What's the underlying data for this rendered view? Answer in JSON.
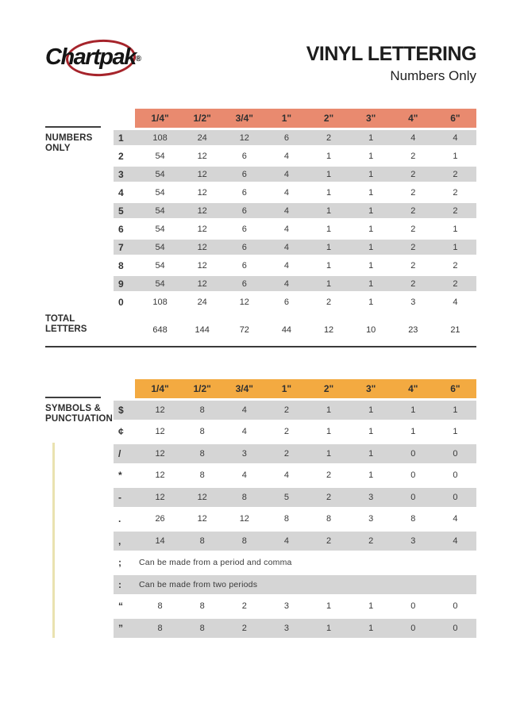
{
  "brand": {
    "logo_text": "Chartpak",
    "registered": "®"
  },
  "header": {
    "title": "VINYL LETTERING",
    "subtitle": "Numbers Only"
  },
  "colors": {
    "numbers_header_bg": "#E98A6F",
    "symbols_header_bg": "#F3AA41",
    "row_stripe": "#D5D5D5",
    "logo_ellipse_red": "#A6242B"
  },
  "sizes": [
    "1/4\"",
    "1/2\"",
    "3/4\"",
    "1\"",
    "2\"",
    "3\"",
    "4\"",
    "6\""
  ],
  "numbers_table": {
    "section_label_line1": "NUMBERS",
    "section_label_line2": "ONLY",
    "rows": [
      {
        "symbol": "1",
        "values": [
          108,
          24,
          12,
          6,
          2,
          1,
          4,
          4
        ]
      },
      {
        "symbol": "2",
        "values": [
          54,
          12,
          6,
          4,
          1,
          1,
          2,
          1
        ]
      },
      {
        "symbol": "3",
        "values": [
          54,
          12,
          6,
          4,
          1,
          1,
          2,
          2
        ]
      },
      {
        "symbol": "4",
        "values": [
          54,
          12,
          6,
          4,
          1,
          1,
          2,
          2
        ]
      },
      {
        "symbol": "5",
        "values": [
          54,
          12,
          6,
          4,
          1,
          1,
          2,
          2
        ]
      },
      {
        "symbol": "6",
        "values": [
          54,
          12,
          6,
          4,
          1,
          1,
          2,
          1
        ]
      },
      {
        "symbol": "7",
        "values": [
          54,
          12,
          6,
          4,
          1,
          1,
          2,
          1
        ]
      },
      {
        "symbol": "8",
        "values": [
          54,
          12,
          6,
          4,
          1,
          1,
          2,
          2
        ]
      },
      {
        "symbol": "9",
        "values": [
          54,
          12,
          6,
          4,
          1,
          1,
          2,
          2
        ]
      },
      {
        "symbol": "0",
        "values": [
          108,
          24,
          12,
          6,
          2,
          1,
          3,
          4
        ]
      }
    ],
    "total_label_line1": "TOTAL",
    "total_label_line2": "LETTERS",
    "totals": [
      648,
      144,
      72,
      44,
      12,
      10,
      23,
      21
    ]
  },
  "symbols_table": {
    "section_label_line1": "SYMBOLS &",
    "section_label_line2": "PUNCTUATION",
    "rows": [
      {
        "symbol": "$",
        "values": [
          12,
          8,
          4,
          2,
          1,
          1,
          1,
          1
        ]
      },
      {
        "symbol": "¢",
        "values": [
          12,
          8,
          4,
          2,
          1,
          1,
          1,
          1
        ]
      },
      {
        "symbol": "/",
        "values": [
          12,
          8,
          3,
          2,
          1,
          1,
          0,
          0
        ]
      },
      {
        "symbol": "*",
        "values": [
          12,
          8,
          4,
          4,
          2,
          1,
          0,
          0
        ]
      },
      {
        "symbol": "-",
        "values": [
          12,
          12,
          8,
          5,
          2,
          3,
          0,
          0
        ]
      },
      {
        "symbol": ".",
        "values": [
          26,
          12,
          12,
          8,
          8,
          3,
          8,
          4
        ]
      },
      {
        "symbol": ",",
        "values": [
          14,
          8,
          8,
          4,
          2,
          2,
          3,
          4
        ]
      },
      {
        "symbol": ";",
        "note": "Can be made from a period and comma"
      },
      {
        "symbol": ":",
        "note": "Can be made from two periods"
      },
      {
        "symbol": "“",
        "values": [
          8,
          8,
          2,
          3,
          1,
          1,
          0,
          0
        ]
      },
      {
        "symbol": "”",
        "values": [
          8,
          8,
          2,
          3,
          1,
          1,
          0,
          0
        ]
      }
    ]
  }
}
